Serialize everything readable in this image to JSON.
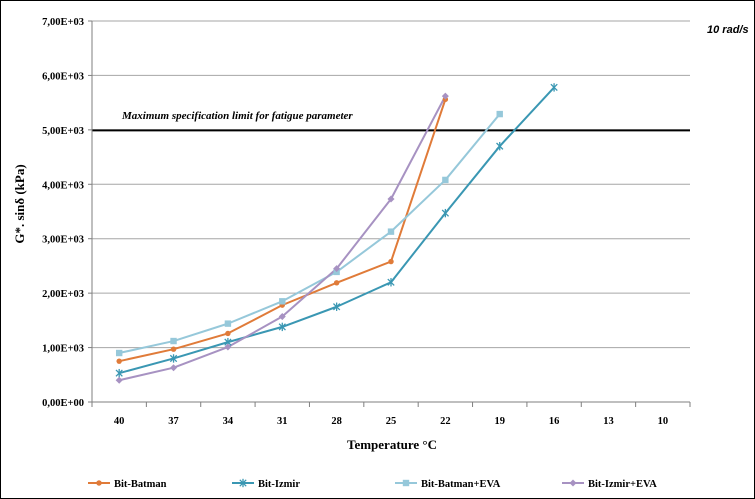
{
  "chart_data": {
    "type": "line",
    "title": "",
    "corner_annotation": "10 rad/s",
    "xlabel": "Temperature °C",
    "ylabel": "G*. sinδ (kPa)",
    "categories": [
      "40",
      "37",
      "34",
      "31",
      "28",
      "25",
      "22",
      "19",
      "16",
      "13",
      "10"
    ],
    "yticks": [
      "0,00E+00",
      "1,00E+03",
      "2,00E+03",
      "3,00E+03",
      "4,00E+03",
      "5,00E+03",
      "6,00E+03",
      "7,00E+03"
    ],
    "ylim": [
      0,
      7000
    ],
    "grid": true,
    "legend_position": "bottom",
    "limit_line": {
      "value": 4990,
      "label": "Maximum specification limit for fatigue parameter",
      "color": "#000000"
    },
    "series": [
      {
        "name": "Bit-Batman",
        "color": "#E07B39",
        "marker": "circle",
        "values": [
          750,
          970,
          1260,
          1780,
          2190,
          2580,
          5560,
          null,
          null,
          null,
          null
        ]
      },
      {
        "name": "Bit-Izmir",
        "color": "#3A97B3",
        "marker": "star",
        "values": [
          530,
          800,
          1100,
          1380,
          1750,
          2200,
          3470,
          4700,
          5780,
          null,
          null
        ]
      },
      {
        "name": "Bit-Batman+EVA",
        "color": "#96C8DA",
        "marker": "square",
        "values": [
          900,
          1120,
          1440,
          1850,
          2390,
          3130,
          4080,
          5290,
          null,
          null,
          null
        ]
      },
      {
        "name": "Bit-Izmir+EVA",
        "color": "#A792C2",
        "marker": "diamond",
        "values": [
          400,
          630,
          1010,
          1570,
          2450,
          3730,
          5620,
          null,
          null,
          null,
          null
        ]
      }
    ]
  }
}
